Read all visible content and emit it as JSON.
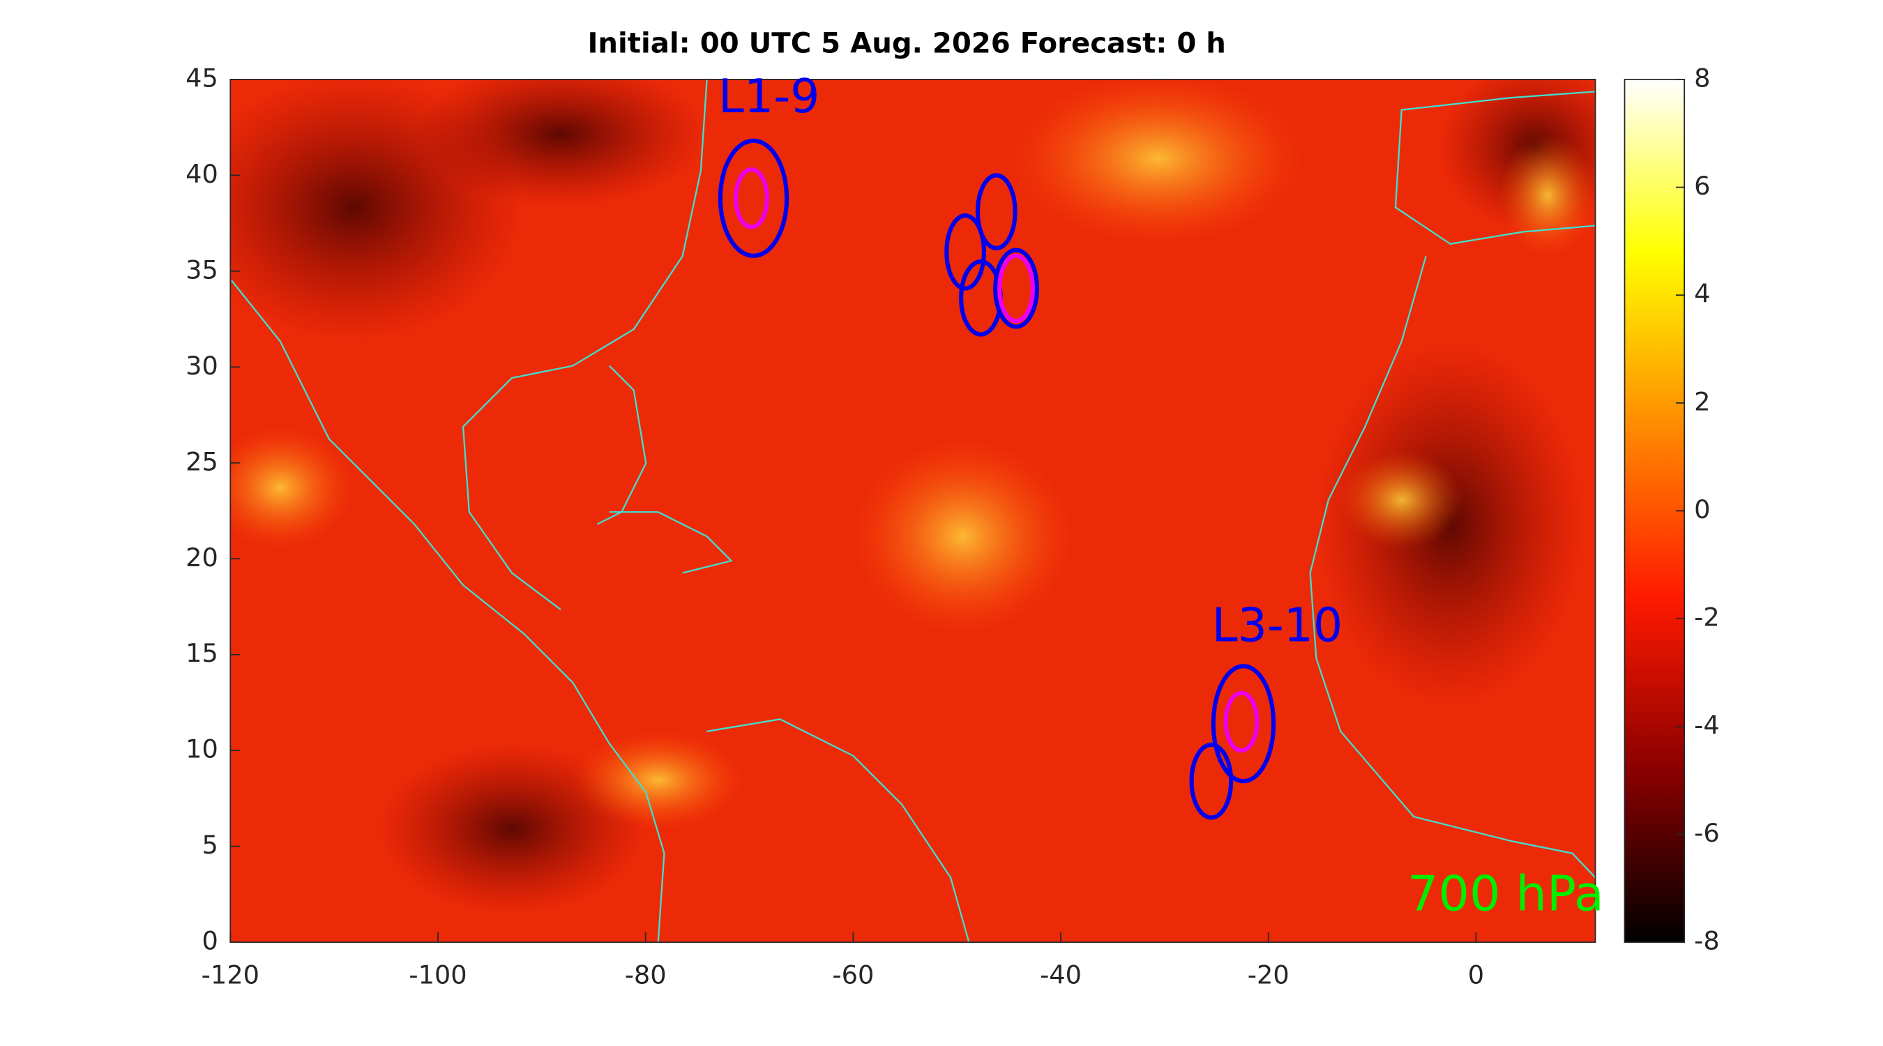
{
  "chart_data": {
    "type": "map",
    "title": "Initial: 00 UTC 5 Aug. 2026 Forecast: 0 h",
    "xlim": [
      -120,
      11.5
    ],
    "ylim": [
      0,
      45
    ],
    "xticks": [
      -120,
      -100,
      -80,
      -60,
      -40,
      -20,
      0
    ],
    "yticks": [
      0,
      5,
      10,
      15,
      20,
      25,
      30,
      35,
      40,
      45
    ],
    "clim": [
      -8,
      8
    ],
    "cticks": [
      -8,
      -6,
      -4,
      -2,
      0,
      2,
      4,
      6,
      8
    ],
    "colormap": [
      "#000000",
      "#8b0000",
      "#ff1a00",
      "#ff8c00",
      "#ffff00",
      "#ffffff"
    ],
    "level_label": "700 hPa",
    "level_color": "#00ee00",
    "coastline_color": "#40e0d0",
    "markers": [
      {
        "lon": -69.6,
        "lat": 38.8,
        "rx": 3.2,
        "ry": 3.0,
        "color": "#0000ee"
      },
      {
        "lon": -69.8,
        "lat": 38.8,
        "rx": 1.5,
        "ry": 1.5,
        "color": "#ee00ee"
      },
      {
        "lon": -46.2,
        "lat": 38.1,
        "rx": 1.8,
        "ry": 1.9,
        "color": "#0000ee"
      },
      {
        "lon": -49.2,
        "lat": 36.0,
        "rx": 1.8,
        "ry": 1.9,
        "color": "#0000ee"
      },
      {
        "lon": -47.7,
        "lat": 33.6,
        "rx": 1.9,
        "ry": 1.9,
        "color": "#0000ee"
      },
      {
        "lon": -44.3,
        "lat": 34.1,
        "rx": 2.0,
        "ry": 2.0,
        "color": "#0000ee"
      },
      {
        "lon": -44.3,
        "lat": 34.1,
        "rx": 1.6,
        "ry": 1.7,
        "color": "#ee00ee"
      },
      {
        "lon": -22.4,
        "lat": 11.4,
        "rx": 2.9,
        "ry": 3.0,
        "color": "#0000ee"
      },
      {
        "lon": -22.6,
        "lat": 11.5,
        "rx": 1.5,
        "ry": 1.5,
        "color": "#ee00ee"
      },
      {
        "lon": -25.5,
        "lat": 8.4,
        "rx": 1.9,
        "ry": 1.9,
        "color": "#0000ee"
      }
    ],
    "annotations": [
      {
        "text": "L1-9",
        "color": "#0000ee"
      },
      {
        "text": "L3-10",
        "color": "#0000ee"
      }
    ]
  }
}
